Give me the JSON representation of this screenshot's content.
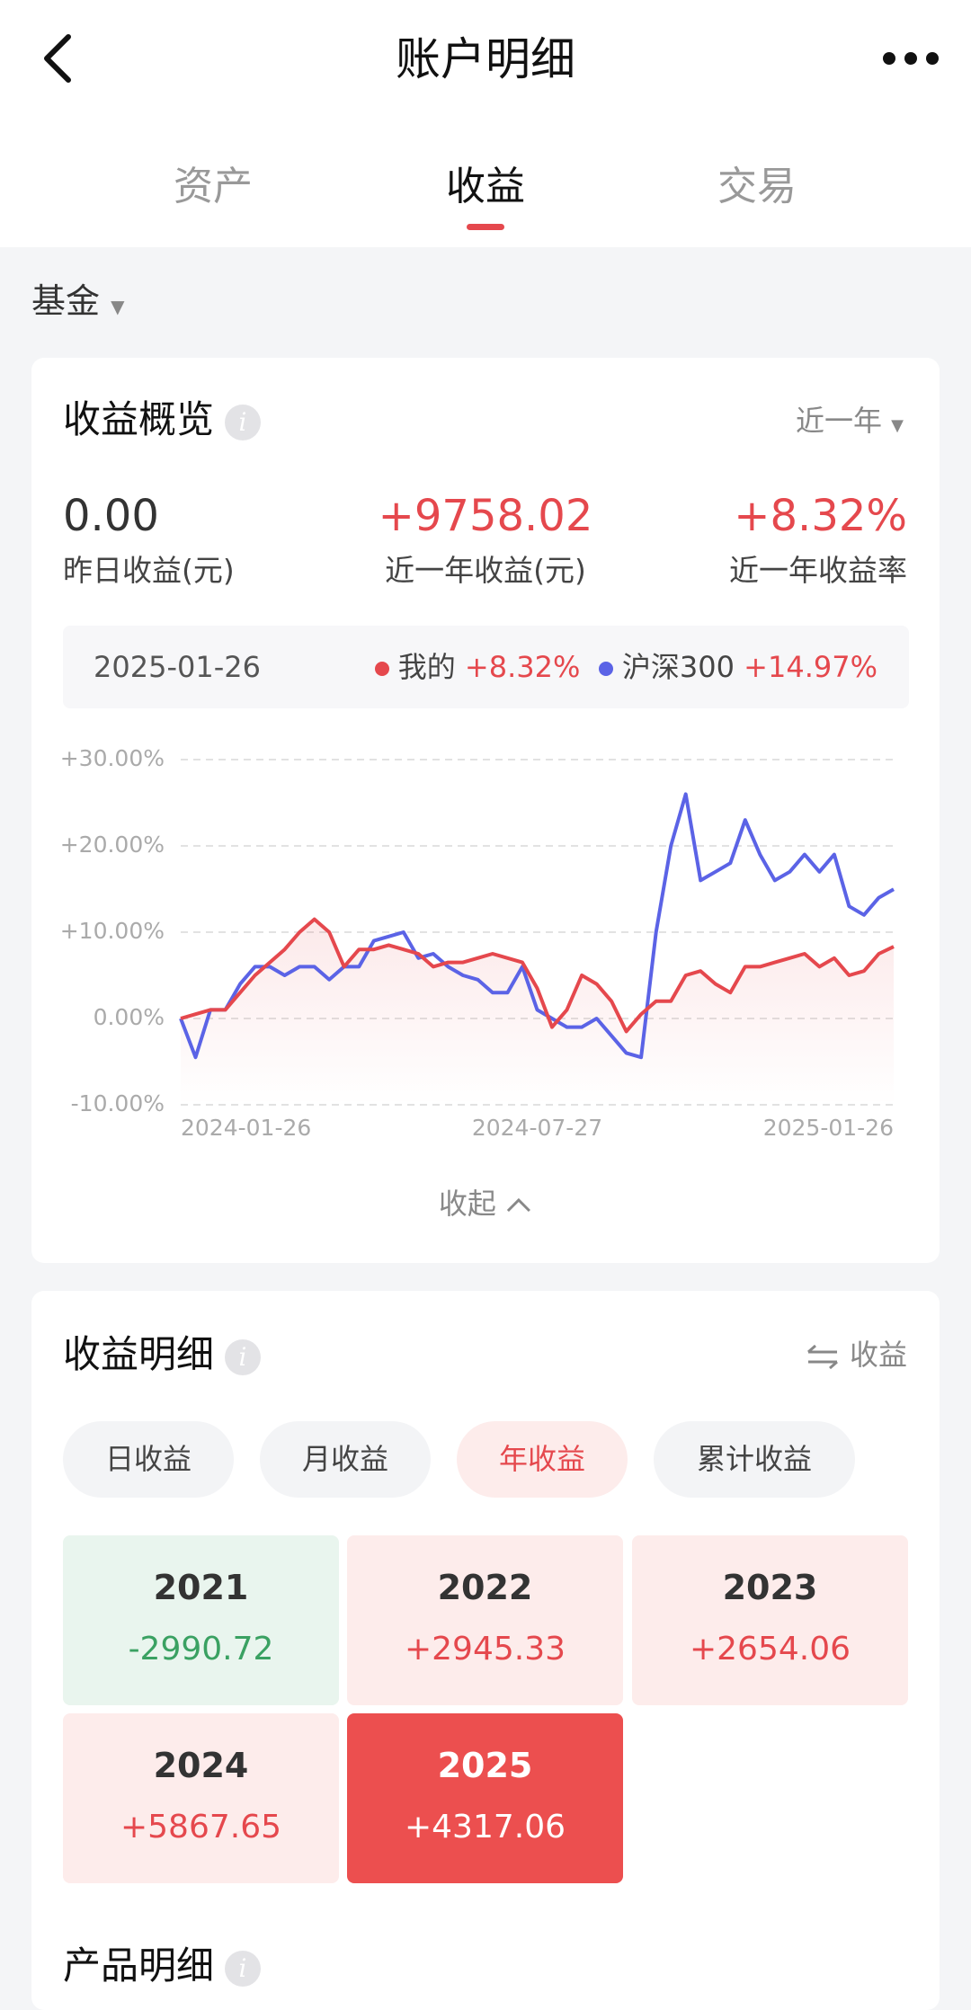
{
  "header": {
    "title": "账户明细",
    "tabs": [
      "资产",
      "收益",
      "交易"
    ]
  },
  "filter": "基金",
  "overview": {
    "title": "收益概览",
    "period": "近一年",
    "stats": [
      {
        "value": "0.00",
        "label": "昨日收益(元)"
      },
      {
        "value": "+9758.02",
        "label": "近一年收益(元)"
      },
      {
        "value": "+8.32%",
        "label": "近一年收益率"
      }
    ],
    "date": "2025-01-26",
    "series_values": [
      "+8.32%",
      "+14.97%"
    ],
    "collapse": "收起"
  },
  "chart_data": {
    "type": "line",
    "categories": [
      "2024-01-26",
      null,
      null,
      null,
      null,
      null,
      null,
      null,
      null,
      null,
      null,
      null,
      null,
      null,
      null,
      null,
      null,
      null,
      null,
      null,
      null,
      null,
      null,
      null,
      "2024-07-27",
      null,
      null,
      null,
      null,
      null,
      null,
      null,
      null,
      null,
      null,
      null,
      null,
      null,
      null,
      null,
      null,
      null,
      null,
      null,
      null,
      null,
      null,
      null,
      "2025-01-26"
    ],
    "series": [
      {
        "name": "我的",
        "color": "#e5484d",
        "values": [
          0,
          0.5,
          1,
          1,
          3,
          5,
          6.5,
          8,
          10,
          11.5,
          10,
          6,
          8,
          8,
          8.5,
          8,
          7.5,
          6,
          6.5,
          6.5,
          7,
          7.5,
          7,
          6.5,
          3.5,
          -1,
          1,
          5,
          4,
          2,
          -1.5,
          0.5,
          2,
          2,
          5,
          5.5,
          4,
          3,
          6,
          6,
          6.5,
          7,
          7.5,
          6,
          7,
          5,
          5.5,
          7.5,
          8.32
        ]
      },
      {
        "name": "沪深300",
        "color": "#5b63e6",
        "values": [
          0,
          -4.5,
          1,
          1,
          4,
          6,
          6,
          5,
          6,
          6,
          4.5,
          6,
          6,
          9,
          9.5,
          10,
          7,
          7.5,
          6,
          5,
          4.5,
          3,
          3,
          6,
          1,
          0,
          -1,
          -1,
          0,
          -2,
          -4,
          -4.5,
          10,
          20,
          26,
          16,
          17,
          18,
          23,
          19,
          16,
          17,
          19,
          17,
          19,
          13,
          12,
          14,
          14.97
        ]
      }
    ],
    "ylim": [
      -10,
      30
    ],
    "yticks": [
      {
        "value": 30,
        "label": "+30.00%"
      },
      {
        "value": 20,
        "label": "+20.00%"
      },
      {
        "value": 10,
        "label": "+10.00%"
      },
      {
        "value": 0,
        "label": "0.00%"
      },
      {
        "value": -10,
        "label": "-10.00%"
      }
    ],
    "grid": true
  },
  "detail": {
    "title": "收益明细",
    "toggle": "收益",
    "filters": [
      "日收益",
      "月收益",
      "年收益",
      "累计收益"
    ],
    "years": [
      {
        "year": "2021",
        "value": "-2990.72"
      },
      {
        "year": "2022",
        "value": "+2945.33"
      },
      {
        "year": "2023",
        "value": "+2654.06"
      },
      {
        "year": "2024",
        "value": "+5867.65"
      },
      {
        "year": "2025",
        "value": "+4317.06"
      }
    ]
  },
  "products": {
    "title": "产品明细"
  }
}
